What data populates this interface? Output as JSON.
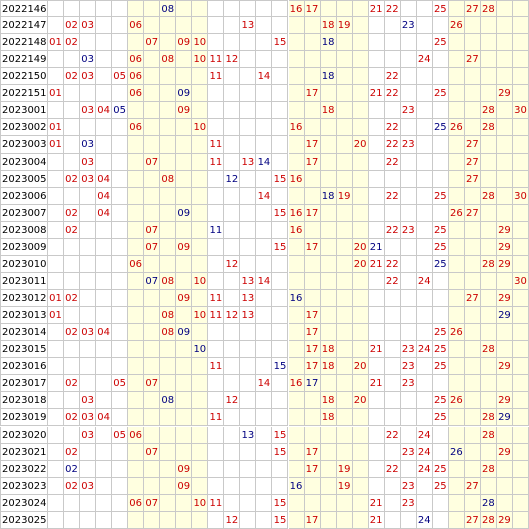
{
  "colors": {
    "red": "#cc0000",
    "blue": "#000080",
    "alt_column": "#ffffe0",
    "grid_line": "#c9c9c9"
  },
  "rows": [
    {
      "period": "2022146",
      "numbers": [
        {
          "n": "08",
          "c": "blue"
        },
        {
          "n": "16",
          "c": "red"
        },
        {
          "n": "17",
          "c": "red"
        },
        {
          "n": "21",
          "c": "red"
        },
        {
          "n": "22",
          "c": "red"
        },
        {
          "n": "25",
          "c": "red"
        },
        {
          "n": "27",
          "c": "red"
        },
        {
          "n": "28",
          "c": "red"
        }
      ]
    },
    {
      "period": "2022147",
      "numbers": [
        {
          "n": "02",
          "c": "red"
        },
        {
          "n": "03",
          "c": "red"
        },
        {
          "n": "06",
          "c": "red"
        },
        {
          "n": "13",
          "c": "red"
        },
        {
          "n": "18",
          "c": "red"
        },
        {
          "n": "19",
          "c": "red"
        },
        {
          "n": "23",
          "c": "blue"
        },
        {
          "n": "26",
          "c": "red"
        }
      ]
    },
    {
      "period": "2022148",
      "numbers": [
        {
          "n": "01",
          "c": "red"
        },
        {
          "n": "02",
          "c": "red"
        },
        {
          "n": "07",
          "c": "red"
        },
        {
          "n": "09",
          "c": "red"
        },
        {
          "n": "10",
          "c": "red"
        },
        {
          "n": "15",
          "c": "red"
        },
        {
          "n": "18",
          "c": "blue"
        },
        {
          "n": "25",
          "c": "red"
        }
      ]
    },
    {
      "period": "2022149",
      "numbers": [
        {
          "n": "03",
          "c": "blue"
        },
        {
          "n": "06",
          "c": "red"
        },
        {
          "n": "08",
          "c": "red"
        },
        {
          "n": "10",
          "c": "red"
        },
        {
          "n": "11",
          "c": "red"
        },
        {
          "n": "12",
          "c": "red"
        },
        {
          "n": "24",
          "c": "red"
        },
        {
          "n": "27",
          "c": "red"
        }
      ]
    },
    {
      "period": "2022150",
      "numbers": [
        {
          "n": "02",
          "c": "red"
        },
        {
          "n": "03",
          "c": "red"
        },
        {
          "n": "05",
          "c": "red"
        },
        {
          "n": "06",
          "c": "red"
        },
        {
          "n": "11",
          "c": "red"
        },
        {
          "n": "14",
          "c": "red"
        },
        {
          "n": "18",
          "c": "blue"
        },
        {
          "n": "22",
          "c": "red"
        }
      ]
    },
    {
      "period": "2022151",
      "numbers": [
        {
          "n": "01",
          "c": "red"
        },
        {
          "n": "06",
          "c": "red"
        },
        {
          "n": "09",
          "c": "blue"
        },
        {
          "n": "17",
          "c": "red"
        },
        {
          "n": "21",
          "c": "red"
        },
        {
          "n": "22",
          "c": "red"
        },
        {
          "n": "25",
          "c": "red"
        },
        {
          "n": "29",
          "c": "red"
        }
      ]
    },
    {
      "period": "2023001",
      "numbers": [
        {
          "n": "03",
          "c": "red"
        },
        {
          "n": "04",
          "c": "red"
        },
        {
          "n": "05",
          "c": "blue"
        },
        {
          "n": "09",
          "c": "red"
        },
        {
          "n": "18",
          "c": "red"
        },
        {
          "n": "23",
          "c": "red"
        },
        {
          "n": "28",
          "c": "red"
        },
        {
          "n": "30",
          "c": "red"
        }
      ]
    },
    {
      "period": "2023002",
      "numbers": [
        {
          "n": "01",
          "c": "red"
        },
        {
          "n": "06",
          "c": "red"
        },
        {
          "n": "10",
          "c": "red"
        },
        {
          "n": "16",
          "c": "red"
        },
        {
          "n": "22",
          "c": "red"
        },
        {
          "n": "25",
          "c": "blue"
        },
        {
          "n": "26",
          "c": "red"
        },
        {
          "n": "28",
          "c": "red"
        }
      ]
    },
    {
      "period": "2023003",
      "numbers": [
        {
          "n": "01",
          "c": "red"
        },
        {
          "n": "03",
          "c": "blue"
        },
        {
          "n": "11",
          "c": "red"
        },
        {
          "n": "17",
          "c": "red"
        },
        {
          "n": "20",
          "c": "red"
        },
        {
          "n": "22",
          "c": "red"
        },
        {
          "n": "23",
          "c": "red"
        },
        {
          "n": "27",
          "c": "red"
        }
      ]
    },
    {
      "period": "2023004",
      "numbers": [
        {
          "n": "03",
          "c": "red"
        },
        {
          "n": "07",
          "c": "red"
        },
        {
          "n": "11",
          "c": "red"
        },
        {
          "n": "13",
          "c": "red"
        },
        {
          "n": "14",
          "c": "blue"
        },
        {
          "n": "17",
          "c": "red"
        },
        {
          "n": "22",
          "c": "red"
        },
        {
          "n": "27",
          "c": "red"
        }
      ]
    },
    {
      "period": "2023005",
      "numbers": [
        {
          "n": "02",
          "c": "red"
        },
        {
          "n": "03",
          "c": "red"
        },
        {
          "n": "04",
          "c": "red"
        },
        {
          "n": "08",
          "c": "red"
        },
        {
          "n": "12",
          "c": "blue"
        },
        {
          "n": "15",
          "c": "red"
        },
        {
          "n": "16",
          "c": "red"
        },
        {
          "n": "27",
          "c": "red"
        }
      ]
    },
    {
      "period": "2023006",
      "numbers": [
        {
          "n": "04",
          "c": "red"
        },
        {
          "n": "14",
          "c": "red"
        },
        {
          "n": "18",
          "c": "blue"
        },
        {
          "n": "19",
          "c": "red"
        },
        {
          "n": "22",
          "c": "red"
        },
        {
          "n": "25",
          "c": "red"
        },
        {
          "n": "28",
          "c": "red"
        },
        {
          "n": "30",
          "c": "red"
        }
      ]
    },
    {
      "period": "2023007",
      "numbers": [
        {
          "n": "02",
          "c": "red"
        },
        {
          "n": "04",
          "c": "red"
        },
        {
          "n": "09",
          "c": "blue"
        },
        {
          "n": "15",
          "c": "red"
        },
        {
          "n": "16",
          "c": "red"
        },
        {
          "n": "17",
          "c": "red"
        },
        {
          "n": "26",
          "c": "red"
        },
        {
          "n": "27",
          "c": "red"
        }
      ]
    },
    {
      "period": "2023008",
      "numbers": [
        {
          "n": "02",
          "c": "red"
        },
        {
          "n": "07",
          "c": "red"
        },
        {
          "n": "11",
          "c": "blue"
        },
        {
          "n": "16",
          "c": "red"
        },
        {
          "n": "22",
          "c": "red"
        },
        {
          "n": "23",
          "c": "red"
        },
        {
          "n": "25",
          "c": "red"
        },
        {
          "n": "29",
          "c": "red"
        }
      ]
    },
    {
      "period": "2023009",
      "numbers": [
        {
          "n": "07",
          "c": "red"
        },
        {
          "n": "09",
          "c": "red"
        },
        {
          "n": "15",
          "c": "red"
        },
        {
          "n": "17",
          "c": "red"
        },
        {
          "n": "20",
          "c": "red"
        },
        {
          "n": "21",
          "c": "blue"
        },
        {
          "n": "25",
          "c": "red"
        },
        {
          "n": "29",
          "c": "red"
        }
      ]
    },
    {
      "period": "2023010",
      "numbers": [
        {
          "n": "06",
          "c": "red"
        },
        {
          "n": "12",
          "c": "red"
        },
        {
          "n": "20",
          "c": "red"
        },
        {
          "n": "21",
          "c": "red"
        },
        {
          "n": "22",
          "c": "red"
        },
        {
          "n": "25",
          "c": "blue"
        },
        {
          "n": "28",
          "c": "red"
        },
        {
          "n": "29",
          "c": "red"
        }
      ]
    },
    {
      "period": "2023011",
      "numbers": [
        {
          "n": "07",
          "c": "blue"
        },
        {
          "n": "08",
          "c": "red"
        },
        {
          "n": "10",
          "c": "red"
        },
        {
          "n": "13",
          "c": "red"
        },
        {
          "n": "14",
          "c": "red"
        },
        {
          "n": "22",
          "c": "red"
        },
        {
          "n": "24",
          "c": "red"
        },
        {
          "n": "30",
          "c": "red"
        }
      ]
    },
    {
      "period": "2023012",
      "numbers": [
        {
          "n": "01",
          "c": "red"
        },
        {
          "n": "02",
          "c": "red"
        },
        {
          "n": "09",
          "c": "red"
        },
        {
          "n": "11",
          "c": "red"
        },
        {
          "n": "13",
          "c": "red"
        },
        {
          "n": "16",
          "c": "blue"
        },
        {
          "n": "27",
          "c": "red"
        },
        {
          "n": "29",
          "c": "red"
        }
      ]
    },
    {
      "period": "2023013",
      "numbers": [
        {
          "n": "01",
          "c": "red"
        },
        {
          "n": "08",
          "c": "red"
        },
        {
          "n": "10",
          "c": "red"
        },
        {
          "n": "11",
          "c": "red"
        },
        {
          "n": "12",
          "c": "red"
        },
        {
          "n": "13",
          "c": "red"
        },
        {
          "n": "17",
          "c": "red"
        },
        {
          "n": "29",
          "c": "blue"
        }
      ]
    },
    {
      "period": "2023014",
      "numbers": [
        {
          "n": "02",
          "c": "red"
        },
        {
          "n": "03",
          "c": "red"
        },
        {
          "n": "04",
          "c": "red"
        },
        {
          "n": "08",
          "c": "red"
        },
        {
          "n": "09",
          "c": "blue"
        },
        {
          "n": "17",
          "c": "red"
        },
        {
          "n": "25",
          "c": "red"
        },
        {
          "n": "26",
          "c": "red"
        }
      ]
    },
    {
      "period": "2023015",
      "numbers": [
        {
          "n": "10",
          "c": "blue"
        },
        {
          "n": "17",
          "c": "red"
        },
        {
          "n": "18",
          "c": "red"
        },
        {
          "n": "21",
          "c": "red"
        },
        {
          "n": "23",
          "c": "red"
        },
        {
          "n": "24",
          "c": "red"
        },
        {
          "n": "25",
          "c": "red"
        },
        {
          "n": "28",
          "c": "red"
        }
      ]
    },
    {
      "period": "2023016",
      "numbers": [
        {
          "n": "11",
          "c": "red"
        },
        {
          "n": "15",
          "c": "blue"
        },
        {
          "n": "17",
          "c": "red"
        },
        {
          "n": "18",
          "c": "red"
        },
        {
          "n": "20",
          "c": "red"
        },
        {
          "n": "23",
          "c": "red"
        },
        {
          "n": "25",
          "c": "red"
        },
        {
          "n": "29",
          "c": "red"
        }
      ]
    },
    {
      "period": "2023017",
      "numbers": [
        {
          "n": "02",
          "c": "red"
        },
        {
          "n": "05",
          "c": "red"
        },
        {
          "n": "07",
          "c": "red"
        },
        {
          "n": "14",
          "c": "red"
        },
        {
          "n": "16",
          "c": "red"
        },
        {
          "n": "17",
          "c": "blue"
        },
        {
          "n": "21",
          "c": "red"
        },
        {
          "n": "23",
          "c": "red"
        }
      ]
    },
    {
      "period": "2023018",
      "numbers": [
        {
          "n": "03",
          "c": "red"
        },
        {
          "n": "08",
          "c": "blue"
        },
        {
          "n": "12",
          "c": "red"
        },
        {
          "n": "18",
          "c": "red"
        },
        {
          "n": "20",
          "c": "red"
        },
        {
          "n": "25",
          "c": "red"
        },
        {
          "n": "26",
          "c": "red"
        },
        {
          "n": "29",
          "c": "red"
        }
      ]
    },
    {
      "period": "2023019",
      "numbers": [
        {
          "n": "02",
          "c": "red"
        },
        {
          "n": "03",
          "c": "red"
        },
        {
          "n": "04",
          "c": "red"
        },
        {
          "n": "11",
          "c": "red"
        },
        {
          "n": "18",
          "c": "red"
        },
        {
          "n": "25",
          "c": "red"
        },
        {
          "n": "28",
          "c": "red"
        },
        {
          "n": "29",
          "c": "blue"
        }
      ]
    },
    {
      "period": "2023020",
      "numbers": [
        {
          "n": "03",
          "c": "red"
        },
        {
          "n": "05",
          "c": "red"
        },
        {
          "n": "06",
          "c": "red"
        },
        {
          "n": "13",
          "c": "blue"
        },
        {
          "n": "15",
          "c": "red"
        },
        {
          "n": "22",
          "c": "red"
        },
        {
          "n": "24",
          "c": "red"
        },
        {
          "n": "28",
          "c": "red"
        }
      ]
    },
    {
      "period": "2023021",
      "numbers": [
        {
          "n": "02",
          "c": "red"
        },
        {
          "n": "07",
          "c": "red"
        },
        {
          "n": "15",
          "c": "red"
        },
        {
          "n": "17",
          "c": "red"
        },
        {
          "n": "23",
          "c": "red"
        },
        {
          "n": "24",
          "c": "red"
        },
        {
          "n": "26",
          "c": "blue"
        },
        {
          "n": "29",
          "c": "red"
        }
      ]
    },
    {
      "period": "2023022",
      "numbers": [
        {
          "n": "02",
          "c": "blue"
        },
        {
          "n": "09",
          "c": "red"
        },
        {
          "n": "17",
          "c": "red"
        },
        {
          "n": "19",
          "c": "red"
        },
        {
          "n": "22",
          "c": "red"
        },
        {
          "n": "24",
          "c": "red"
        },
        {
          "n": "25",
          "c": "red"
        },
        {
          "n": "28",
          "c": "red"
        }
      ]
    },
    {
      "period": "2023023",
      "numbers": [
        {
          "n": "02",
          "c": "red"
        },
        {
          "n": "03",
          "c": "red"
        },
        {
          "n": "09",
          "c": "red"
        },
        {
          "n": "16",
          "c": "blue"
        },
        {
          "n": "19",
          "c": "red"
        },
        {
          "n": "23",
          "c": "red"
        },
        {
          "n": "25",
          "c": "red"
        },
        {
          "n": "27",
          "c": "red"
        }
      ]
    },
    {
      "period": "2023024",
      "numbers": [
        {
          "n": "06",
          "c": "red"
        },
        {
          "n": "07",
          "c": "red"
        },
        {
          "n": "10",
          "c": "red"
        },
        {
          "n": "11",
          "c": "red"
        },
        {
          "n": "15",
          "c": "red"
        },
        {
          "n": "21",
          "c": "red"
        },
        {
          "n": "23",
          "c": "red"
        },
        {
          "n": "28",
          "c": "blue"
        }
      ]
    },
    {
      "period": "2023025",
      "numbers": [
        {
          "n": "12",
          "c": "red"
        },
        {
          "n": "15",
          "c": "red"
        },
        {
          "n": "17",
          "c": "red"
        },
        {
          "n": "21",
          "c": "red"
        },
        {
          "n": "24",
          "c": "blue"
        },
        {
          "n": "27",
          "c": "red"
        },
        {
          "n": "28",
          "c": "red"
        },
        {
          "n": "29",
          "c": "red"
        }
      ]
    }
  ]
}
